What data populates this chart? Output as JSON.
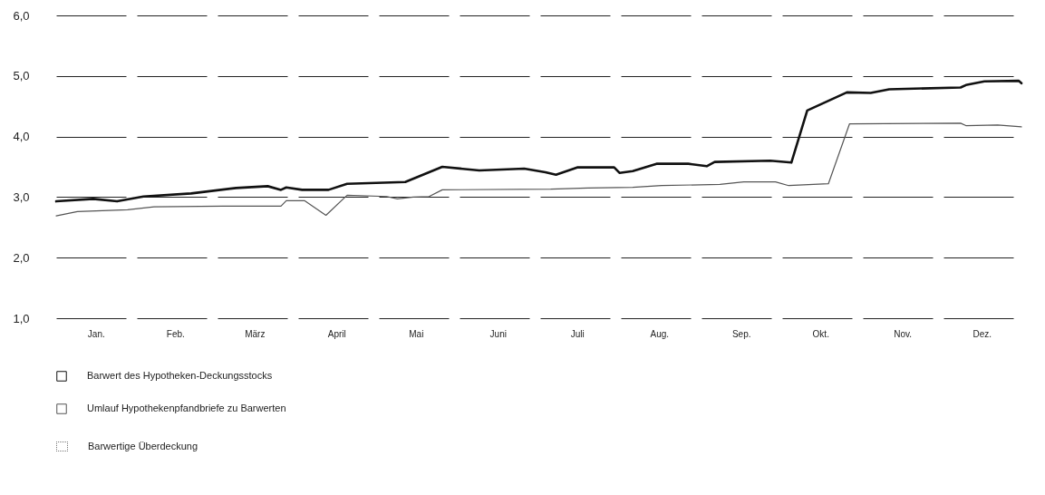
{
  "chart_data": {
    "type": "line",
    "xlim": [
      "--01-01",
      "--12-31"
    ],
    "xticks": [
      {
        "value": "--01-16",
        "label": "Jan."
      },
      {
        "value": "--02-15",
        "label": "Feb."
      },
      {
        "value": "--03-16",
        "label": "März"
      },
      {
        "value": "--04-16",
        "label": "April"
      },
      {
        "value": "--05-16",
        "label": "Mai"
      },
      {
        "value": "--06-16",
        "label": "Juni"
      },
      {
        "value": "--07-16",
        "label": "Juli"
      },
      {
        "value": "--08-16",
        "label": "Aug."
      },
      {
        "value": "--09-16",
        "label": "Sep."
      },
      {
        "value": "--10-16",
        "label": "Okt."
      },
      {
        "value": "--11-16",
        "label": "Nov."
      },
      {
        "value": "--12-16",
        "label": "Dez."
      }
    ],
    "ylim": [
      1,
      6
    ],
    "yticks": [
      {
        "value": 1,
        "label": "1,0"
      },
      {
        "value": 2,
        "label": "2,0"
      },
      {
        "value": 3,
        "label": "3,0"
      },
      {
        "value": 4,
        "label": "4,0"
      },
      {
        "value": 5,
        "label": "5,0"
      },
      {
        "value": 6,
        "label": "6,0"
      }
    ],
    "grid": "y",
    "legend": "bottom left",
    "marker": "none",
    "line_style": "solid",
    "series": [
      {
        "name": "Barwert des Hypotheken-Deckungsstocks",
        "color": "#111111",
        "x": [
          "--01-01",
          "--01-15",
          "--01-24",
          "--02-03",
          "--02-21",
          "--03-09",
          "--03-21",
          "--03-26",
          "--03-28",
          "--04-03",
          "--04-13",
          "--04-20",
          "--05-12",
          "--05-26",
          "--06-09",
          "--06-26",
          "--07-04",
          "--07-08",
          "--07-16",
          "--07-30",
          "--08-01",
          "--08-06",
          "--08-15",
          "--08-27",
          "--09-03",
          "--09-06",
          "--09-27",
          "--10-05",
          "--10-11",
          "--10-26",
          "--11-04",
          "--11-11",
          "--12-08",
          "--12-10",
          "--12-17",
          "--12-30",
          "--12-31"
        ],
        "values": [
          2.93,
          2.97,
          2.93,
          3.01,
          3.06,
          3.15,
          3.18,
          3.12,
          3.16,
          3.12,
          3.12,
          3.22,
          3.25,
          3.5,
          3.44,
          3.47,
          3.41,
          3.37,
          3.49,
          3.49,
          3.4,
          3.43,
          3.55,
          3.55,
          3.51,
          3.58,
          3.6,
          3.57,
          4.43,
          4.73,
          4.72,
          4.78,
          4.81,
          4.85,
          4.91,
          4.92,
          4.88
        ]
      },
      {
        "name": "Umlauf Hypothekenpfandbriefe zu Barwerten",
        "color": "#555555",
        "x": [
          "--01-01",
          "--01-09",
          "--01-28",
          "--02-07",
          "--03-04",
          "--03-26",
          "--03-28",
          "--04-04",
          "--04-12",
          "--04-20",
          "--05-05",
          "--05-09",
          "--05-15",
          "--05-21",
          "--05-26",
          "--07-06",
          "--07-20",
          "--08-06",
          "--08-17",
          "--09-08",
          "--09-17",
          "--09-29",
          "--10-04",
          "--10-19",
          "--10-27",
          "--12-08",
          "--12-10",
          "--12-22",
          "--12-31"
        ],
        "values": [
          2.69,
          2.76,
          2.79,
          2.84,
          2.85,
          2.85,
          2.94,
          2.94,
          2.7,
          3.03,
          3.01,
          2.97,
          3.0,
          3.01,
          3.12,
          3.13,
          3.15,
          3.16,
          3.19,
          3.21,
          3.25,
          3.25,
          3.19,
          3.22,
          4.21,
          4.22,
          4.18,
          4.19,
          4.16
        ]
      }
    ],
    "annotations": [
      "Barwertige Überdeckung"
    ]
  }
}
